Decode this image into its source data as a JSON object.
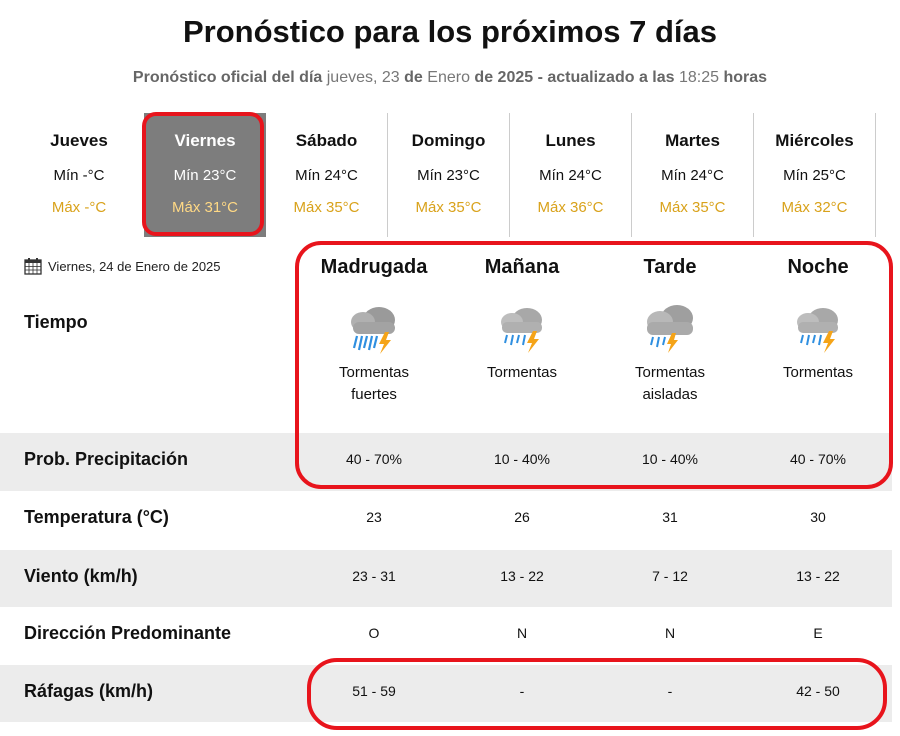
{
  "header": {
    "title": "Pronóstico para los próximos 7 días",
    "subtitle_a": "Pronóstico oficial del día",
    "subtitle_b": "jueves, 23",
    "subtitle_c": "de",
    "subtitle_d": "Enero",
    "subtitle_e": "de 2025",
    "subtitle_f": "- actualizado a las",
    "subtitle_g": "18:25",
    "subtitle_h": "horas"
  },
  "days": [
    {
      "name": "Jueves",
      "min": "Mín -°C",
      "max": "Máx -°C"
    },
    {
      "name": "Viernes",
      "min": "Mín 23°C",
      "max": "Máx 31°C"
    },
    {
      "name": "Sábado",
      "min": "Mín 24°C",
      "max": "Máx 35°C"
    },
    {
      "name": "Domingo",
      "min": "Mín 23°C",
      "max": "Máx 35°C"
    },
    {
      "name": "Lunes",
      "min": "Mín 24°C",
      "max": "Máx 36°C"
    },
    {
      "name": "Martes",
      "min": "Mín 24°C",
      "max": "Máx 35°C"
    },
    {
      "name": "Miércoles",
      "min": "Mín 25°C",
      "max": "Máx 32°C"
    }
  ],
  "selected_day_index": 1,
  "detail": {
    "date": "Viernes, 24 de Enero de 2025",
    "date_icon": "calendar-icon",
    "periods": [
      "Madrugada",
      "Mañana",
      "Tarde",
      "Noche"
    ],
    "tiempo_label": "Tiempo",
    "weather": [
      {
        "icon": "heavy-storm-icon",
        "desc1": "Tormentas",
        "desc2": "fuertes"
      },
      {
        "icon": "storm-icon",
        "desc1": "Tormentas",
        "desc2": ""
      },
      {
        "icon": "isolated-storm-icon",
        "desc1": "Tormentas",
        "desc2": "aisladas"
      },
      {
        "icon": "storm-icon",
        "desc1": "Tormentas",
        "desc2": ""
      }
    ],
    "rows": {
      "precip": {
        "label": "Prob. Precipitación",
        "values": [
          "40 - 70%",
          "10 - 40%",
          "10 - 40%",
          "40 - 70%"
        ]
      },
      "temp": {
        "label": "Temperatura (°C)",
        "values": [
          "23",
          "26",
          "31",
          "30"
        ]
      },
      "wind": {
        "label": "Viento (km/h)",
        "values": [
          "23 - 31",
          "13 - 22",
          "7 - 12",
          "13 - 22"
        ]
      },
      "dir": {
        "label": "Dirección Predominante",
        "values": [
          "O",
          "N",
          "N",
          "E"
        ]
      },
      "gusts": {
        "label": "Ráfagas (km/h)",
        "values": [
          "51 - 59",
          "-",
          "-",
          "42 - 50"
        ]
      }
    }
  },
  "colors": {
    "highlight": "#e8141c",
    "max_temp": "#d9a21b",
    "selected_bg": "#7d7d7d",
    "band": "#ececec"
  }
}
